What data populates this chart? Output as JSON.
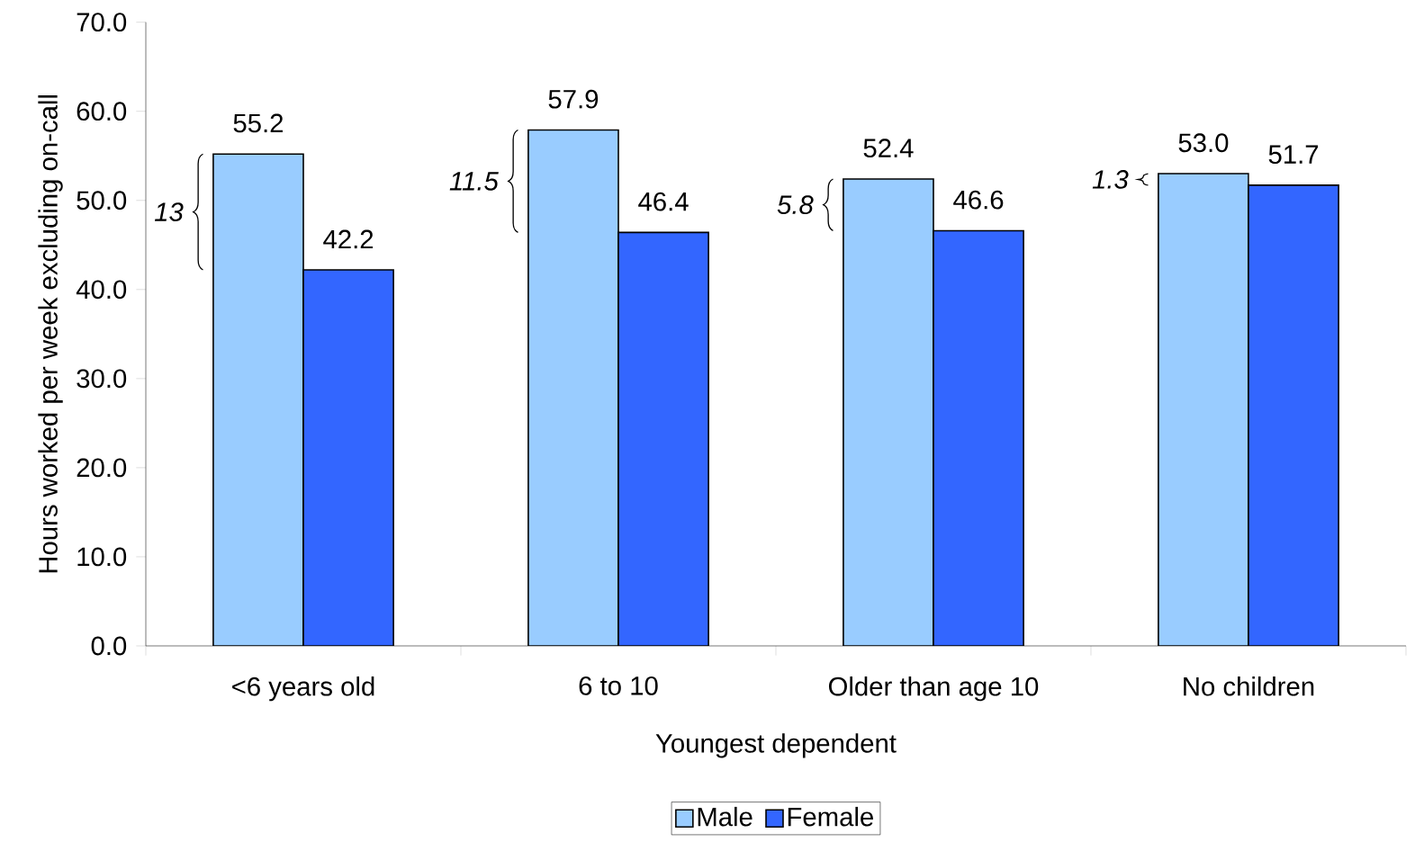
{
  "chart_data": {
    "type": "bar",
    "xlabel": "Youngest dependent",
    "ylabel": "Hours worked per week excluding on-call",
    "categories": [
      "<6 years old",
      "6 to 10",
      "Older than age 10",
      "No children"
    ],
    "series": [
      {
        "name": "Male",
        "color": "#99ccff",
        "values": [
          55.2,
          57.9,
          52.4,
          53.0
        ],
        "value_labels": [
          "55.2",
          "57.9",
          "52.4",
          "53.0"
        ]
      },
      {
        "name": "Female",
        "color": "#3366ff",
        "values": [
          42.2,
          46.4,
          46.6,
          51.7
        ],
        "value_labels": [
          "42.2",
          "46.4",
          "46.6",
          "51.7"
        ]
      }
    ],
    "ylim": [
      0,
      70
    ],
    "yticks": [
      {
        "value": 0,
        "label": "0.0"
      },
      {
        "value": 10,
        "label": "10.0"
      },
      {
        "value": 20,
        "label": "20.0"
      },
      {
        "value": 30,
        "label": "30.0"
      },
      {
        "value": 40,
        "label": "40.0"
      },
      {
        "value": 50,
        "label": "50.0"
      },
      {
        "value": 60,
        "label": "60.0"
      },
      {
        "value": 70,
        "label": "70.0"
      }
    ],
    "annotations": [
      "13",
      "11.5",
      "5.8",
      "1.3"
    ],
    "grid": false,
    "legend": "bottom"
  }
}
